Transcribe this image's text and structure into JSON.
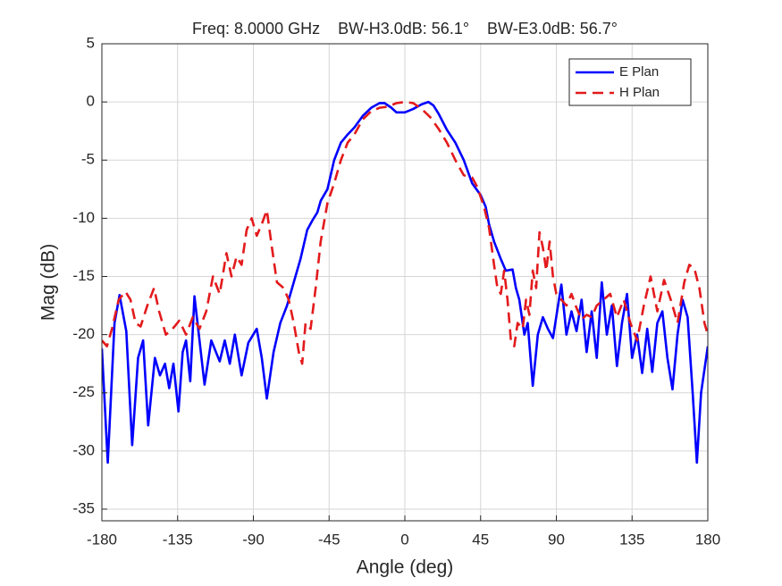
{
  "chart_data": {
    "type": "line",
    "title": "Freq: 8.0000 GHz    BW-H3.0dB: 56.1°    BW-E3.0dB: 56.7°",
    "x_label": "Angle (deg)",
    "y_label": "Mag (dB)",
    "xlim": [
      -180,
      180
    ],
    "xticks": [
      -180,
      -135,
      -90,
      -45,
      0,
      45,
      90,
      135,
      180
    ],
    "ylim": [
      -36,
      5
    ],
    "yticks": [
      -35,
      -30,
      -25,
      -20,
      -15,
      -10,
      -5,
      0,
      5
    ],
    "grid": true,
    "legend": "top-right",
    "series": [
      {
        "name": "E Plan",
        "color": "#0000ff",
        "line_style": "solid",
        "x": [
          -180,
          -176.5,
          -172.5,
          -169.5,
          -165.5,
          -162,
          -158.5,
          -155.5,
          -152.5,
          -148.5,
          -145.5,
          -142.5,
          -140,
          -137.5,
          -134.5,
          -132,
          -130,
          -127.5,
          -125,
          -122,
          -119,
          -115,
          -110,
          -107,
          -104,
          -101,
          -97,
          -93,
          -88,
          -85,
          -82,
          -78,
          -74,
          -70,
          -66,
          -62,
          -58,
          -55,
          -52,
          -50,
          -46,
          -42,
          -38,
          -34,
          -30,
          -25,
          -20,
          -15,
          -12,
          -8,
          -5,
          0,
          5,
          10,
          14,
          17,
          20,
          25,
          30,
          35,
          40,
          45,
          48,
          50,
          53,
          57,
          60,
          64,
          66,
          68,
          71,
          73,
          76,
          79,
          82,
          85,
          88,
          91,
          93,
          96,
          99,
          102,
          105,
          108,
          111,
          114,
          117,
          120,
          123,
          126,
          129,
          132,
          135,
          138,
          141,
          144,
          147,
          150,
          153,
          156,
          159,
          162,
          165,
          168,
          171,
          173.5,
          176,
          180
        ],
        "values": [
          -21.2,
          -31,
          -19,
          -16.6,
          -19.7,
          -29.5,
          -22,
          -20.5,
          -27.8,
          -22,
          -23.5,
          -22.5,
          -24.6,
          -22.5,
          -26.6,
          -21.5,
          -20.5,
          -24,
          -16.7,
          -20.5,
          -24.3,
          -20.5,
          -22.3,
          -20.5,
          -22.5,
          -20,
          -23.5,
          -20.7,
          -19.5,
          -22,
          -25.5,
          -21.5,
          -19,
          -17.5,
          -15.5,
          -13.5,
          -11,
          -10.2,
          -9.5,
          -8.5,
          -7.5,
          -5,
          -3.5,
          -2.8,
          -2.2,
          -1.2,
          -0.5,
          -0.1,
          -0.1,
          -0.5,
          -0.9,
          -0.9,
          -0.6,
          -0.2,
          0,
          -0.3,
          -1,
          -2.4,
          -3.5,
          -5,
          -7,
          -8,
          -9,
          -10.5,
          -12,
          -13.5,
          -14.5,
          -14.4,
          -16,
          -17,
          -20,
          -19,
          -24.4,
          -20,
          -18.5,
          -19.5,
          -20.3,
          -17.5,
          -15.7,
          -20,
          -18,
          -19.7,
          -17,
          -21.5,
          -18,
          -22,
          -15.5,
          -20,
          -17.5,
          -22.7,
          -19,
          -16.5,
          -22,
          -20,
          -23.3,
          -19.5,
          -23.2,
          -19,
          -18,
          -22,
          -24.7,
          -20,
          -17,
          -18.5,
          -25,
          -31,
          -25,
          -21
        ]
      },
      {
        "name": "H Plan",
        "color": "#e31a1c",
        "line_style": "dashed",
        "x": [
          -180,
          -177,
          -174,
          -170,
          -166,
          -163,
          -160,
          -157,
          -153,
          -149,
          -146,
          -142,
          -138,
          -134,
          -130,
          -126,
          -122,
          -118,
          -114,
          -110,
          -106,
          -103,
          -100,
          -97,
          -94,
          -91,
          -88,
          -85,
          -82,
          -79,
          -76,
          -72,
          -69,
          -66,
          -63,
          -61,
          -59,
          -56,
          -53,
          -50,
          -46,
          -42,
          -38,
          -34,
          -30,
          -25,
          -20,
          -15,
          -10,
          -5,
          0,
          5,
          10,
          15,
          20,
          25,
          30,
          35,
          40,
          43,
          47,
          50,
          53,
          55,
          57,
          59,
          61,
          63,
          65,
          67,
          70,
          72,
          74,
          76,
          78,
          80,
          82,
          84,
          86,
          88,
          90,
          93,
          96,
          99,
          102,
          105,
          108,
          111,
          114,
          118,
          122,
          126,
          130,
          134,
          138,
          142,
          146,
          150,
          154,
          158,
          162,
          166,
          169,
          172,
          175,
          178,
          180
        ],
        "values": [
          -20.5,
          -21,
          -19.5,
          -17,
          -16.3,
          -17,
          -19,
          -19.3,
          -17.5,
          -16,
          -18,
          -20,
          -19.5,
          -18.8,
          -20,
          -18.5,
          -19.5,
          -18,
          -15,
          -16.5,
          -13,
          -15,
          -13.3,
          -14,
          -11,
          -10,
          -11.5,
          -10.5,
          -9.3,
          -12.5,
          -15.5,
          -16,
          -17,
          -19,
          -21.5,
          -22.5,
          -19,
          -19.5,
          -16,
          -12,
          -8.7,
          -7,
          -5,
          -3.5,
          -2.8,
          -1.5,
          -0.8,
          -0.5,
          -0.4,
          -0.1,
          0,
          -0.1,
          -0.6,
          -1.3,
          -2.3,
          -3.5,
          -5,
          -6.3,
          -6.5,
          -7.3,
          -9,
          -10.8,
          -14,
          -16,
          -16.5,
          -14.5,
          -17,
          -20.5,
          -21,
          -19,
          -19.5,
          -17,
          -18.3,
          -14.5,
          -16,
          -11.2,
          -12.5,
          -14.5,
          -12,
          -15,
          -16.5,
          -17,
          -17.5,
          -16.5,
          -17.7,
          -18.7,
          -18.3,
          -18.5,
          -17.5,
          -17,
          -16.5,
          -18.5,
          -17,
          -19,
          -20.5,
          -17.5,
          -15,
          -18,
          -15.3,
          -17,
          -19,
          -15.5,
          -14,
          -14.3,
          -16,
          -19,
          -20
        ]
      }
    ]
  }
}
